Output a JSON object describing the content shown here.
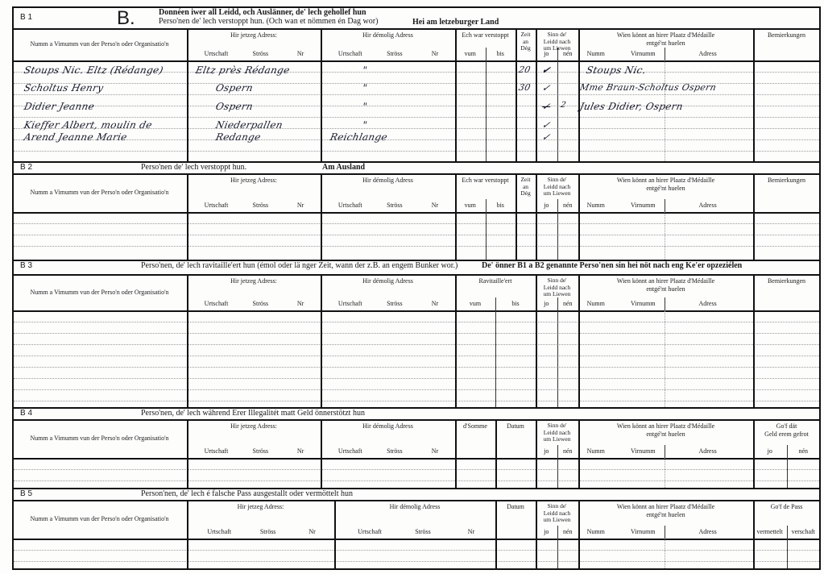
{
  "sections": [
    {
      "label": "B 1",
      "big_letter": "B.",
      "title_lines": [
        "Donnéen iwer all Leidd, och Auslänner, de' lech gehollef hun",
        "Perso'nen de' lech verstoppt hun. (Och wan et nömmen én Dag wor)"
      ],
      "title_right": "Hei am letzeburger Land",
      "columns": [
        {
          "key": "name",
          "label": "Numm a Vimumm vun der Perso'n oder Organisatio'n",
          "subs": []
        },
        {
          "key": "jetzeg",
          "label": "Hir jetzeg Adress:",
          "subs": [
            "Urtschaft",
            "Ströss",
            "Nr"
          ]
        },
        {
          "key": "demolig",
          "label": "Hir démolig Adress",
          "subs": [
            "Urtschaft",
            "Ströss",
            "Nr"
          ]
        },
        {
          "key": "verstoppt",
          "label": "Ech war verstoppt",
          "subs": [
            "vum",
            "bis"
          ]
        },
        {
          "key": "zeit",
          "label": "Zeit\nan\nDég",
          "subs": []
        },
        {
          "key": "sinn",
          "label": "Sinn de'\nLeidd nach\num Liewen",
          "subs": [
            "jo",
            "nén"
          ]
        },
        {
          "key": "wien",
          "label": "Wien könnt an hirer Plaatz d'Médaille\nentgé'nt huelen",
          "subs": [
            "Numm",
            "Virnumm",
            "Adress"
          ]
        },
        {
          "key": "bemierkungen",
          "label": "Bemierkungen",
          "subs": []
        }
      ],
      "entries": [
        {
          "name": "Stoups Nic. Eltz (Rédange)",
          "jetzeg": "Eltz près Rédange",
          "demolig": "\"",
          "zeit": "20",
          "jo": "✔",
          "nen": "",
          "wien": "Stoups Nic."
        },
        {
          "name": "Scholtus Henry",
          "jetzeg": "Ospern",
          "demolig": "\"",
          "zeit": "30",
          "jo": "✓",
          "nen": "",
          "wien": "Mme Braun-Scholtus   Ospern"
        },
        {
          "name": "Didier Jeanne",
          "jetzeg": "Ospern",
          "demolig": "\"",
          "zeit": "",
          "jo": "✓",
          "nen": "2",
          "wien": "Jules Didier, Ospern"
        },
        {
          "name": "Kieffer Albert, moulin de",
          "jetzeg": "Niederpallen",
          "demolig": "\"",
          "zeit": "",
          "jo": "✓",
          "nen": "",
          "wien": ""
        },
        {
          "name": "Arend Jeanne Marie",
          "jetzeg": "Redange",
          "demolig": "Reichlange",
          "zeit": "",
          "jo": "✓",
          "nen": "",
          "wien": ""
        }
      ]
    },
    {
      "label": "B 2",
      "title_lines": [
        "Perso'nen de' lech verstoppt hun."
      ],
      "title_right": "Am Ausland",
      "columns": [
        {
          "key": "name",
          "label": "Numm a Vimumm vun der Perso'n oder Organisatio'n",
          "subs": []
        },
        {
          "key": "jetzeg",
          "label": "Hir jetzeg Adress:",
          "subs": [
            "Urtschaft",
            "Ströss",
            "Nr"
          ]
        },
        {
          "key": "demolig",
          "label": "Hir démolig Adress",
          "subs": [
            "Urtschaft",
            "Ströss",
            "Nr"
          ]
        },
        {
          "key": "verstoppt",
          "label": "Ech war verstoppt",
          "subs": [
            "vum",
            "bis"
          ]
        },
        {
          "key": "zeit",
          "label": "Zeit\nan\nDég",
          "subs": []
        },
        {
          "key": "sinn",
          "label": "Sinn de'\nLeidd nach\num Liewen",
          "subs": [
            "jo",
            "nén"
          ]
        },
        {
          "key": "wien",
          "label": "Wien könnt an hirer Plaatz d'Médaille\nentgé'nt huelen",
          "subs": [
            "Numm",
            "Virnumm",
            "Adress"
          ]
        },
        {
          "key": "bemierkungen",
          "label": "Bemierkungen",
          "subs": []
        }
      ]
    },
    {
      "label": "B 3",
      "title_lines": [
        "Perso'nen, de' lech ravitaille'ert hun (émol oder lä nger Zeit, wann der z.B. an engem Bunker wor.)"
      ],
      "title_right": "De' önner B1 a B2 genannte Perso'nen sin hei nöt nach eng Ke'er opzeziélen",
      "columns": [
        {
          "key": "name",
          "label": "Numm a Vimumm vun der Perso'n oder Organisatio'n",
          "subs": []
        },
        {
          "key": "jetzeg",
          "label": "Hir jetzeg Adress:",
          "subs": [
            "Urtschaft",
            "Ströss",
            "Nr"
          ]
        },
        {
          "key": "demolig",
          "label": "Hir démolig Adress",
          "subs": [
            "Urtschaft",
            "Ströss",
            "Nr"
          ]
        },
        {
          "key": "ravitailleert",
          "label": "Ravitaille'ert",
          "subs": [
            "vum",
            "bis"
          ]
        },
        {
          "key": "sinn",
          "label": "Sinn de'\nLeidd nach\num Liewen",
          "subs": [
            "jo",
            "nén"
          ]
        },
        {
          "key": "wien",
          "label": "Wien könnt an hirer Plaatz d'Médaille\nentgé'nt huelen",
          "subs": [
            "Numm",
            "Virnumm",
            "Adress"
          ]
        },
        {
          "key": "bemierkungen",
          "label": "Bemierkungen",
          "subs": []
        }
      ]
    },
    {
      "label": "B 4",
      "title_lines": [
        "Perso'nen, de' lech während Erer Illegalitét matt Geld önnerstötzt hun"
      ],
      "columns": [
        {
          "key": "name",
          "label": "Numm a Vimumm vun der Perso'n oder Organisatio'n",
          "subs": []
        },
        {
          "key": "jetzeg",
          "label": "Hir jetzeg Adress:",
          "subs": [
            "Urtschaft",
            "Ströss",
            "Nr"
          ]
        },
        {
          "key": "demolig",
          "label": "Hir démolig Adress",
          "subs": [
            "Urtschaft",
            "Ströss",
            "Nr"
          ]
        },
        {
          "key": "somme",
          "label": "d'Somme",
          "subs": []
        },
        {
          "key": "datum",
          "label": "Datum",
          "subs": []
        },
        {
          "key": "sinn",
          "label": "Sinn de'\nLeidd nach\num Liewen",
          "subs": [
            "jo",
            "nén"
          ]
        },
        {
          "key": "wien",
          "label": "Wien könnt an hirer Plaatz d'Médaille\nentgé'nt huelen",
          "subs": [
            "Numm",
            "Virnumm",
            "Adress"
          ]
        },
        {
          "key": "gof",
          "label": "Go'f dät\nGeld erem gefrot",
          "subs": [
            "jo",
            "nén"
          ]
        }
      ]
    },
    {
      "label": "B 5",
      "title_lines": [
        "Person'nen, de' lech é falsche Pass ausgestallt oder  vermöttelt hun"
      ],
      "columns": [
        {
          "key": "name",
          "label": "Numm a Vimumm vun der Perso'n oder Organisatio'n",
          "subs": []
        },
        {
          "key": "jetzeg",
          "label": "Hir jetzeg Adress:",
          "subs": [
            "Urtschaft",
            "Ströss",
            "Nr"
          ]
        },
        {
          "key": "demolig",
          "label": "Hir démolig Adress",
          "subs": [
            "Urtschaft",
            "Ströss",
            "Nr"
          ]
        },
        {
          "key": "datum",
          "label": "Datum",
          "subs": []
        },
        {
          "key": "sinn",
          "label": "Sinn de'\nLeidd nach\num Liewen",
          "subs": [
            "jo",
            "nén"
          ]
        },
        {
          "key": "wien",
          "label": "Wien könnt an hirer Plaatz d'Médaille\nentgé'nt huelen",
          "subs": [
            "Numm",
            "Virnumm",
            "Adress"
          ]
        },
        {
          "key": "gof",
          "label": "Go'f de Pass",
          "subs": [
            "vermettelt",
            "verschaft"
          ]
        }
      ]
    }
  ],
  "colors": {
    "ink": "#111111",
    "handwriting": "#161a2a",
    "paper": "#fdfdfc"
  }
}
